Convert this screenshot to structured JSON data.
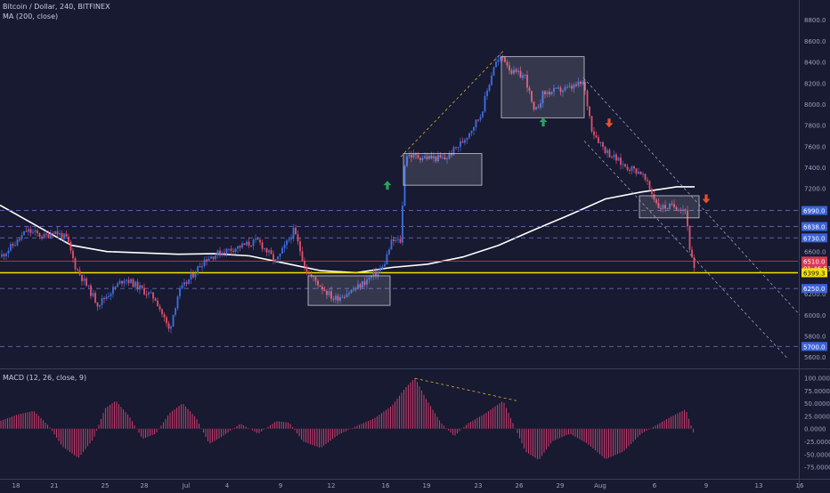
{
  "header": {
    "symbol": "Bitcoin / Dollar, 240, BITFINEX",
    "ma_label": "MA (200, close)",
    "macd_label": "MACD (12, 26, close, 9)"
  },
  "colors": {
    "background": "#171a30",
    "up_candle": "#3f6fe6",
    "down_candle": "#e4506b",
    "ma_line": "#ffffff",
    "support_line": "#f5e000",
    "red_line": "#cc3344",
    "histogram": "#c03a6a",
    "trendline": "#e0b030"
  },
  "chart_data": [
    {
      "type": "candlestick",
      "title": "Bitcoin / Dollar, 240, BITFINEX",
      "y_axis": {
        "ticks": [
          "8800.0",
          "8600.0",
          "8400.0",
          "8200.0",
          "8000.0",
          "7800.0",
          "7600.0",
          "7400.0",
          "7200.0",
          "6600.0",
          "6200.0",
          "6000.0",
          "5800.0",
          "5600.0"
        ],
        "ylim": [
          5500,
          8920
        ]
      },
      "x_axis": {
        "ticks": [
          "18",
          "21",
          "25",
          "28",
          "Jul",
          "4",
          "9",
          "12",
          "16",
          "19",
          "23",
          "26",
          "29",
          "Aug",
          "6",
          "9",
          "13",
          "16"
        ]
      },
      "price_labels": [
        {
          "value": "6990.0",
          "price": 6990,
          "style": "blue"
        },
        {
          "value": "6838.0",
          "price": 6838,
          "style": "blue"
        },
        {
          "value": "6730.0",
          "price": 6730,
          "style": "blue"
        },
        {
          "value": "6510.0",
          "price": 6510,
          "style": "red"
        },
        {
          "value": "01:46:53",
          "price": 6440,
          "style": "red"
        },
        {
          "value": "6399.3",
          "price": 6399.3,
          "style": "yellow"
        },
        {
          "value": "6250.0",
          "price": 6250,
          "style": "blue"
        },
        {
          "value": "5700.0",
          "price": 5700,
          "style": "blue"
        }
      ],
      "series": [
        {
          "name": "MA (200, close)",
          "x": [
            0,
            40,
            80,
            120,
            160,
            200,
            240,
            280,
            320,
            360,
            400,
            440,
            480,
            520,
            560,
            600,
            640,
            680,
            720,
            760,
            780
          ],
          "values": [
            7040,
            6850,
            6660,
            6600,
            6588,
            6575,
            6580,
            6560,
            6490,
            6420,
            6400,
            6450,
            6480,
            6550,
            6660,
            6808,
            6950,
            7100,
            7165,
            7215,
            7215
          ]
        }
      ],
      "candle_path": {
        "x": [
          0,
          20,
          30,
          50,
          60,
          75,
          85,
          110,
          140,
          175,
          190,
          200,
          230,
          250,
          290,
          310,
          330,
          345,
          375,
          400,
          430,
          440,
          450,
          455,
          470,
          500,
          520,
          540,
          555,
          565,
          575,
          590,
          600,
          610,
          640,
          655,
          665,
          680,
          700,
          720,
          740,
          760,
          770,
          775,
          780
        ],
        "values": [
          6550,
          6700,
          6800,
          6740,
          6800,
          6720,
          6450,
          6100,
          6350,
          6150,
          5850,
          6200,
          6530,
          6600,
          6700,
          6500,
          6800,
          6400,
          6150,
          6250,
          6450,
          6700,
          6700,
          7520,
          7500,
          7480,
          7650,
          7900,
          8380,
          8450,
          8300,
          8260,
          7900,
          8100,
          8150,
          8200,
          7750,
          7560,
          7420,
          7350,
          7020,
          7030,
          7000,
          6600,
          6399
        ]
      },
      "rectangles": [
        {
          "x": [
            346,
            438
          ],
          "price": [
            6370,
            6090
          ]
        },
        {
          "x": [
            453,
            541
          ],
          "price": [
            7530,
            7230
          ]
        },
        {
          "x": [
            563,
            656
          ],
          "price": [
            8450,
            7870
          ]
        },
        {
          "x": [
            718,
            785
          ],
          "price": [
            7130,
            6920
          ]
        }
      ],
      "arrows": [
        {
          "type": "up",
          "x": 435,
          "price": 7230,
          "color": "#2f9e5e"
        },
        {
          "type": "up",
          "x": 610,
          "price": 7830,
          "color": "#2f9e5e"
        },
        {
          "type": "down",
          "x": 684,
          "price": 7820,
          "color": "#e8502e"
        },
        {
          "type": "down",
          "x": 793,
          "price": 7100,
          "color": "#e8502e"
        }
      ],
      "horizontal_lines": [
        {
          "price": 6990,
          "style": "dashed-blue"
        },
        {
          "price": 6838,
          "style": "dashed-blue"
        },
        {
          "price": 6730,
          "style": "dashed-blue"
        },
        {
          "price": 6510,
          "style": "solid-red"
        },
        {
          "price": 6399.3,
          "style": "solid-yellow"
        },
        {
          "price": 6250,
          "style": "dashed-blue"
        },
        {
          "price": 5700,
          "style": "dashed-blue"
        }
      ],
      "trendlines": [
        {
          "x": [
            450,
            567
          ],
          "price": [
            7500,
            8520
          ],
          "style": "dotted-yellow"
        },
        {
          "x": [
            655,
            898
          ],
          "price": [
            8250,
            6000
          ],
          "style": "dotted-white"
        },
        {
          "x": [
            656,
            885
          ],
          "price": [
            7650,
            5580
          ],
          "style": "dotted-white"
        }
      ]
    },
    {
      "type": "bar",
      "title": "MACD (12, 26, close, 9)",
      "y_axis": {
        "ticks": [
          "100.0000",
          "75.0000",
          "50.0000",
          "25.0000",
          "0.0000",
          "-25.0000",
          "-50.0000",
          "-75.0000"
        ],
        "ylim": [
          -95,
          108
        ]
      },
      "hist_shape": {
        "x": [
          0,
          20,
          38,
          55,
          70,
          88,
          105,
          118,
          130,
          145,
          160,
          175,
          190,
          205,
          220,
          235,
          250,
          270,
          290,
          310,
          325,
          340,
          360,
          380,
          400,
          420,
          440,
          455,
          466,
          478,
          495,
          510,
          525,
          545,
          565,
          575,
          590,
          605,
          620,
          640,
          660,
          680,
          700,
          720,
          740,
          755,
          770,
          780
        ],
        "values": [
          15,
          28,
          35,
          5,
          -35,
          -58,
          -20,
          40,
          55,
          25,
          -20,
          -10,
          30,
          50,
          22,
          -30,
          -15,
          10,
          -10,
          15,
          12,
          -25,
          -38,
          -12,
          5,
          20,
          45,
          80,
          100,
          60,
          12,
          -15,
          10,
          30,
          55,
          15,
          -45,
          -62,
          -25,
          -10,
          -30,
          -60,
          -45,
          -10,
          10,
          25,
          38,
          -15
        ]
      },
      "trendlines": [
        {
          "x": [
            466,
            580
          ],
          "value": [
            99,
            55
          ],
          "style": "dotted-yellow"
        }
      ]
    }
  ]
}
